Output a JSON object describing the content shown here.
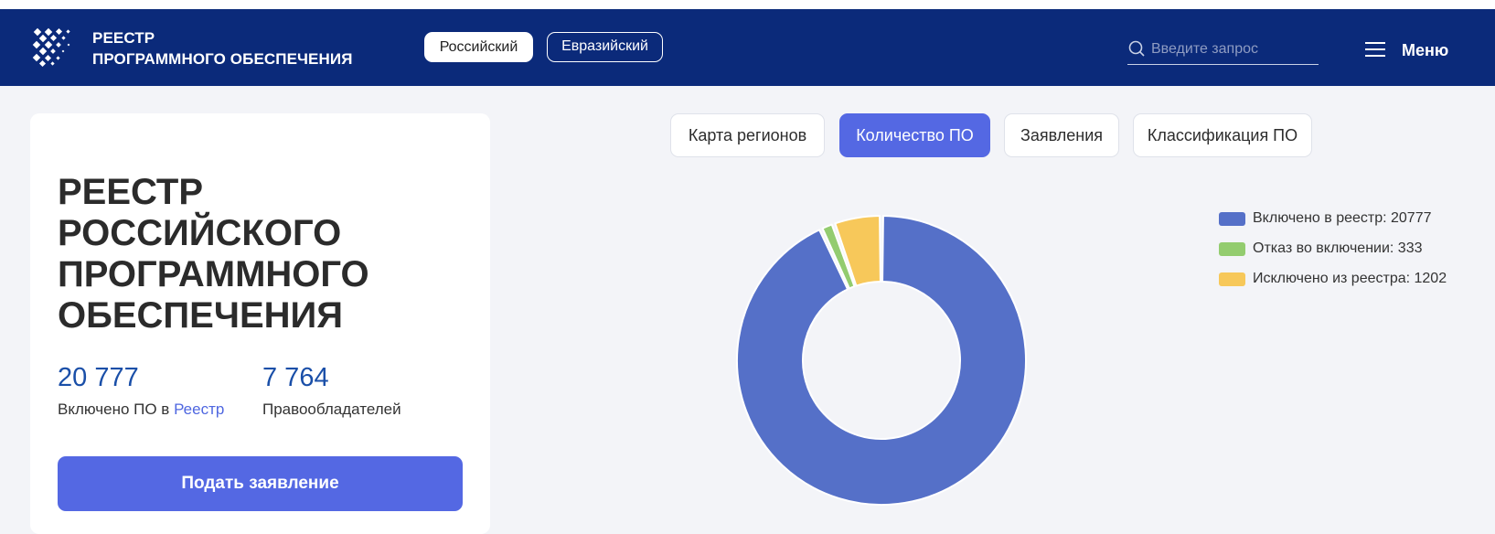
{
  "header": {
    "brand_line1": "РЕЕСТР",
    "brand_line2": "ПРОГРАММНОГО ОБЕСПЕЧЕНИЯ",
    "registry_tabs": [
      "Российский",
      "Евразийский"
    ],
    "search_placeholder": "Введите запрос",
    "menu_label": "Меню"
  },
  "card": {
    "title": "РЕЕСТР РОССИЙСКОГО ПРОГРАММНОГО ОБЕСПЕЧЕНИЯ",
    "stat1_value": "20 777",
    "stat1_label_prefix": "Включено ПО в ",
    "stat1_label_link": "Реестр",
    "stat2_value": "7 764",
    "stat2_label": "Правообладателей",
    "apply_button": "Подать заявление"
  },
  "tabs": [
    "Карта регионов",
    "Количество ПО",
    "Заявления",
    "Классификация ПО"
  ],
  "selected_tab": "Количество ПО",
  "chart_data": {
    "type": "pie",
    "donut": true,
    "slices": [
      {
        "label": "Включено в реестр",
        "value": 20777,
        "color": "#5570c8",
        "legend_text": "Включено в реестр: 20777"
      },
      {
        "label": "Отказ во включении",
        "value": 333,
        "color": "#93cc6f",
        "legend_text": "Отказ во включении: 333"
      },
      {
        "label": "Исключено из реестра",
        "value": 1202,
        "color": "#f7c85a",
        "legend_text": "Исключено из реестра: 1202"
      }
    ],
    "legend_position": "top-right"
  }
}
